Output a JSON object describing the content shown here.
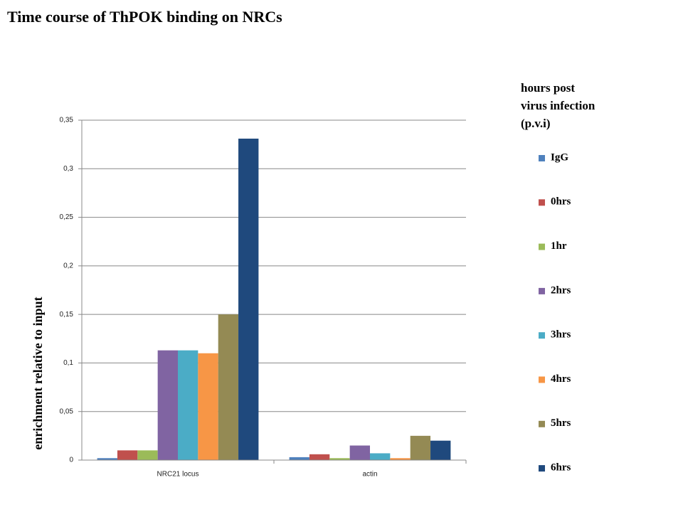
{
  "chart_data": {
    "type": "bar",
    "title": "Time course of ThPOK binding on NRCs",
    "y_label": "enrichment relative to input",
    "legend_title": [
      "hours post",
      "virus infection",
      "(p.v.i)"
    ],
    "categories": [
      "NRC21 locus",
      "actin"
    ],
    "series": [
      {
        "name": "IgG",
        "color": "#4f81bd",
        "values": [
          0.002,
          0.003
        ]
      },
      {
        "name": "0hrs",
        "color": "#c0504d",
        "values": [
          0.01,
          0.006
        ]
      },
      {
        "name": "1hr",
        "color": "#9bbb59",
        "values": [
          0.01,
          0.002
        ]
      },
      {
        "name": "2hrs",
        "color": "#8064a2",
        "values": [
          0.113,
          0.015
        ]
      },
      {
        "name": "3hrs",
        "color": "#4bacc6",
        "values": [
          0.113,
          0.007
        ]
      },
      {
        "name": "4hrs",
        "color": "#f79646",
        "values": [
          0.11,
          0.002
        ]
      },
      {
        "name": "5hrs",
        "color": "#948a54",
        "values": [
          0.15,
          0.025
        ]
      },
      {
        "name": "6hrs",
        "color": "#1f497d",
        "values": [
          0.331,
          0.02
        ]
      }
    ],
    "ylim": [
      0,
      0.35
    ],
    "yticks": [
      0,
      {
        "value": 0.05,
        "label": "0,05"
      },
      {
        "value": 0.1,
        "label": "0,1"
      },
      {
        "value": 0.15,
        "label": "0,15"
      },
      {
        "value": 0.2,
        "label": "0,2"
      },
      {
        "value": 0.25,
        "label": "0,25"
      },
      {
        "value": 0.3,
        "label": "0,3"
      },
      {
        "value": 0.35,
        "label": "0,35"
      }
    ],
    "grid": true,
    "legend": "right"
  }
}
